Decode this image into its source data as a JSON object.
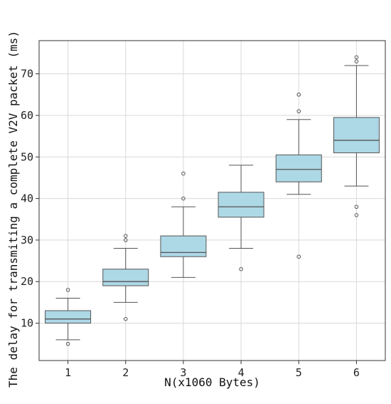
{
  "chart_data": {
    "type": "box",
    "title": "",
    "xlabel": "N(x1060 Bytes)",
    "ylabel": "The delay for transmiting a complete V2V packet (ms)",
    "xlim": [
      0.5,
      6.5
    ],
    "ylim": [
      1,
      78
    ],
    "grid": true,
    "box_fill": "#add8e6",
    "line_color": "#555555",
    "categories": [
      "1",
      "2",
      "3",
      "4",
      "5",
      "6"
    ],
    "yticks": [
      10,
      20,
      30,
      40,
      50,
      60,
      70
    ],
    "boxes": [
      {
        "x": "1",
        "whisker_low": 6,
        "q1": 10,
        "median": 11,
        "q3": 13,
        "whisker_high": 16,
        "outliers": [
          5,
          18
        ]
      },
      {
        "x": "2",
        "whisker_low": 15,
        "q1": 19,
        "median": 20,
        "q3": 23,
        "whisker_high": 28,
        "outliers": [
          11,
          30,
          31
        ]
      },
      {
        "x": "3",
        "whisker_low": 21,
        "q1": 26,
        "median": 27,
        "q3": 31,
        "whisker_high": 38,
        "outliers": [
          40,
          46
        ]
      },
      {
        "x": "4",
        "whisker_low": 28,
        "q1": 35.5,
        "median": 38,
        "q3": 41.5,
        "whisker_high": 48,
        "outliers": [
          23
        ]
      },
      {
        "x": "5",
        "whisker_low": 41,
        "q1": 44,
        "median": 47,
        "q3": 50.5,
        "whisker_high": 59,
        "outliers": [
          26,
          61,
          65
        ]
      },
      {
        "x": "6",
        "whisker_low": 43,
        "q1": 51,
        "median": 54,
        "q3": 59.5,
        "whisker_high": 72,
        "outliers": [
          36,
          38,
          73,
          74
        ]
      }
    ]
  }
}
